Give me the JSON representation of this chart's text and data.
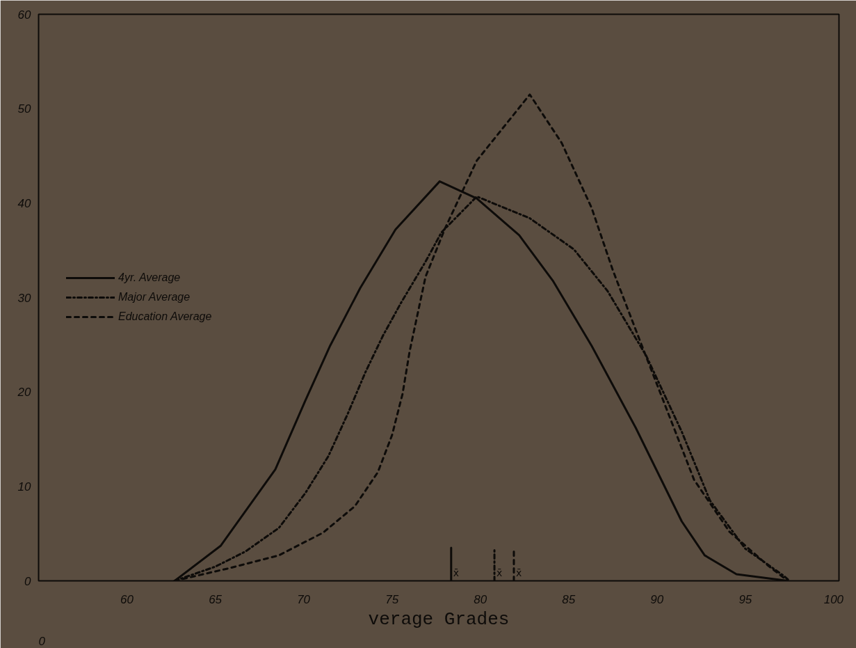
{
  "chart_data": {
    "type": "line",
    "xlabel": "verage Grades",
    "xlim": [
      55,
      100.3
    ],
    "ylim": [
      0,
      60
    ],
    "xticks": [
      60,
      65,
      70,
      75,
      80,
      85,
      90,
      95,
      100
    ],
    "yticks": [
      0,
      10,
      20,
      30,
      40,
      50,
      60
    ],
    "grid": false,
    "legend": "left",
    "marker": "none",
    "series": [
      {
        "name": "4yr. Average",
        "color": "#0d0b09",
        "line_style": "solid",
        "x": [
          62.7,
          65.3,
          68.4,
          70.1,
          71.5,
          73.2,
          75.2,
          77.7,
          79.8,
          82.2,
          84.1,
          86.3,
          88.8,
          91.4,
          92.7,
          94.5,
          97.4
        ],
        "values": [
          0,
          3.7,
          11.8,
          19.1,
          24.9,
          31,
          37.2,
          42.3,
          40.5,
          36.6,
          31.8,
          24.9,
          16.2,
          6.3,
          2.7,
          0.7,
          0
        ]
      },
      {
        "name": "Major Average",
        "color": "#0d0b09",
        "line_style": "dashdot",
        "x": [
          62.7,
          65.0,
          66.7,
          68.6,
          70.1,
          71.4,
          72.5,
          73.5,
          74.5,
          75.5,
          76.9,
          77.8,
          79.8,
          82.8,
          85.3,
          87.2,
          89.4,
          91.4,
          93.0,
          95.0,
          97.2,
          97.5
        ],
        "values": [
          0,
          1.5,
          3.1,
          5.6,
          9.3,
          13.2,
          17.7,
          22.1,
          26,
          29.4,
          33.8,
          36.9,
          40.7,
          38.4,
          35.1,
          30.7,
          23.8,
          15.8,
          8.5,
          3.4,
          0.5,
          0
        ]
      },
      {
        "name": "Education Average",
        "color": "#0d0b09",
        "line_style": "dashed",
        "x": [
          62.7,
          65.7,
          68.6,
          71.1,
          72.9,
          74.2,
          75.0,
          75.6,
          76.0,
          76.9,
          78.0,
          79.8,
          82.8,
          84.6,
          86.3,
          87.5,
          89.0,
          90.5,
          92.1,
          94.1,
          96.3,
          97.4
        ],
        "values": [
          0,
          1.3,
          2.7,
          5.1,
          7.9,
          11.5,
          15.4,
          19.8,
          24.3,
          32.2,
          37.3,
          44.5,
          51.5,
          46.4,
          39.5,
          32.9,
          25.6,
          18.4,
          10.7,
          5.2,
          1.6,
          0
        ]
      },
      {
        "color": "#0d0b09",
        "line_style": "solid",
        "x": [
          78.35,
          78.35
        ],
        "values": [
          0,
          3.5
        ]
      },
      {
        "color": "#0d0b09",
        "line_style": "dashdot",
        "x": [
          80.8,
          80.8
        ],
        "values": [
          0,
          3.5
        ]
      },
      {
        "color": "#0d0b09",
        "line_style": "dashed",
        "x": [
          81.9,
          81.9
        ],
        "values": [
          0,
          3.5
        ]
      }
    ],
    "annotations": [
      "0",
      {
        "text": "x̄",
        "x": 78.35,
        "y": 0
      },
      {
        "text": "x̄",
        "x": 80.8,
        "y": 0
      },
      {
        "text": "x̄",
        "x": 81.9,
        "y": 0
      }
    ]
  }
}
